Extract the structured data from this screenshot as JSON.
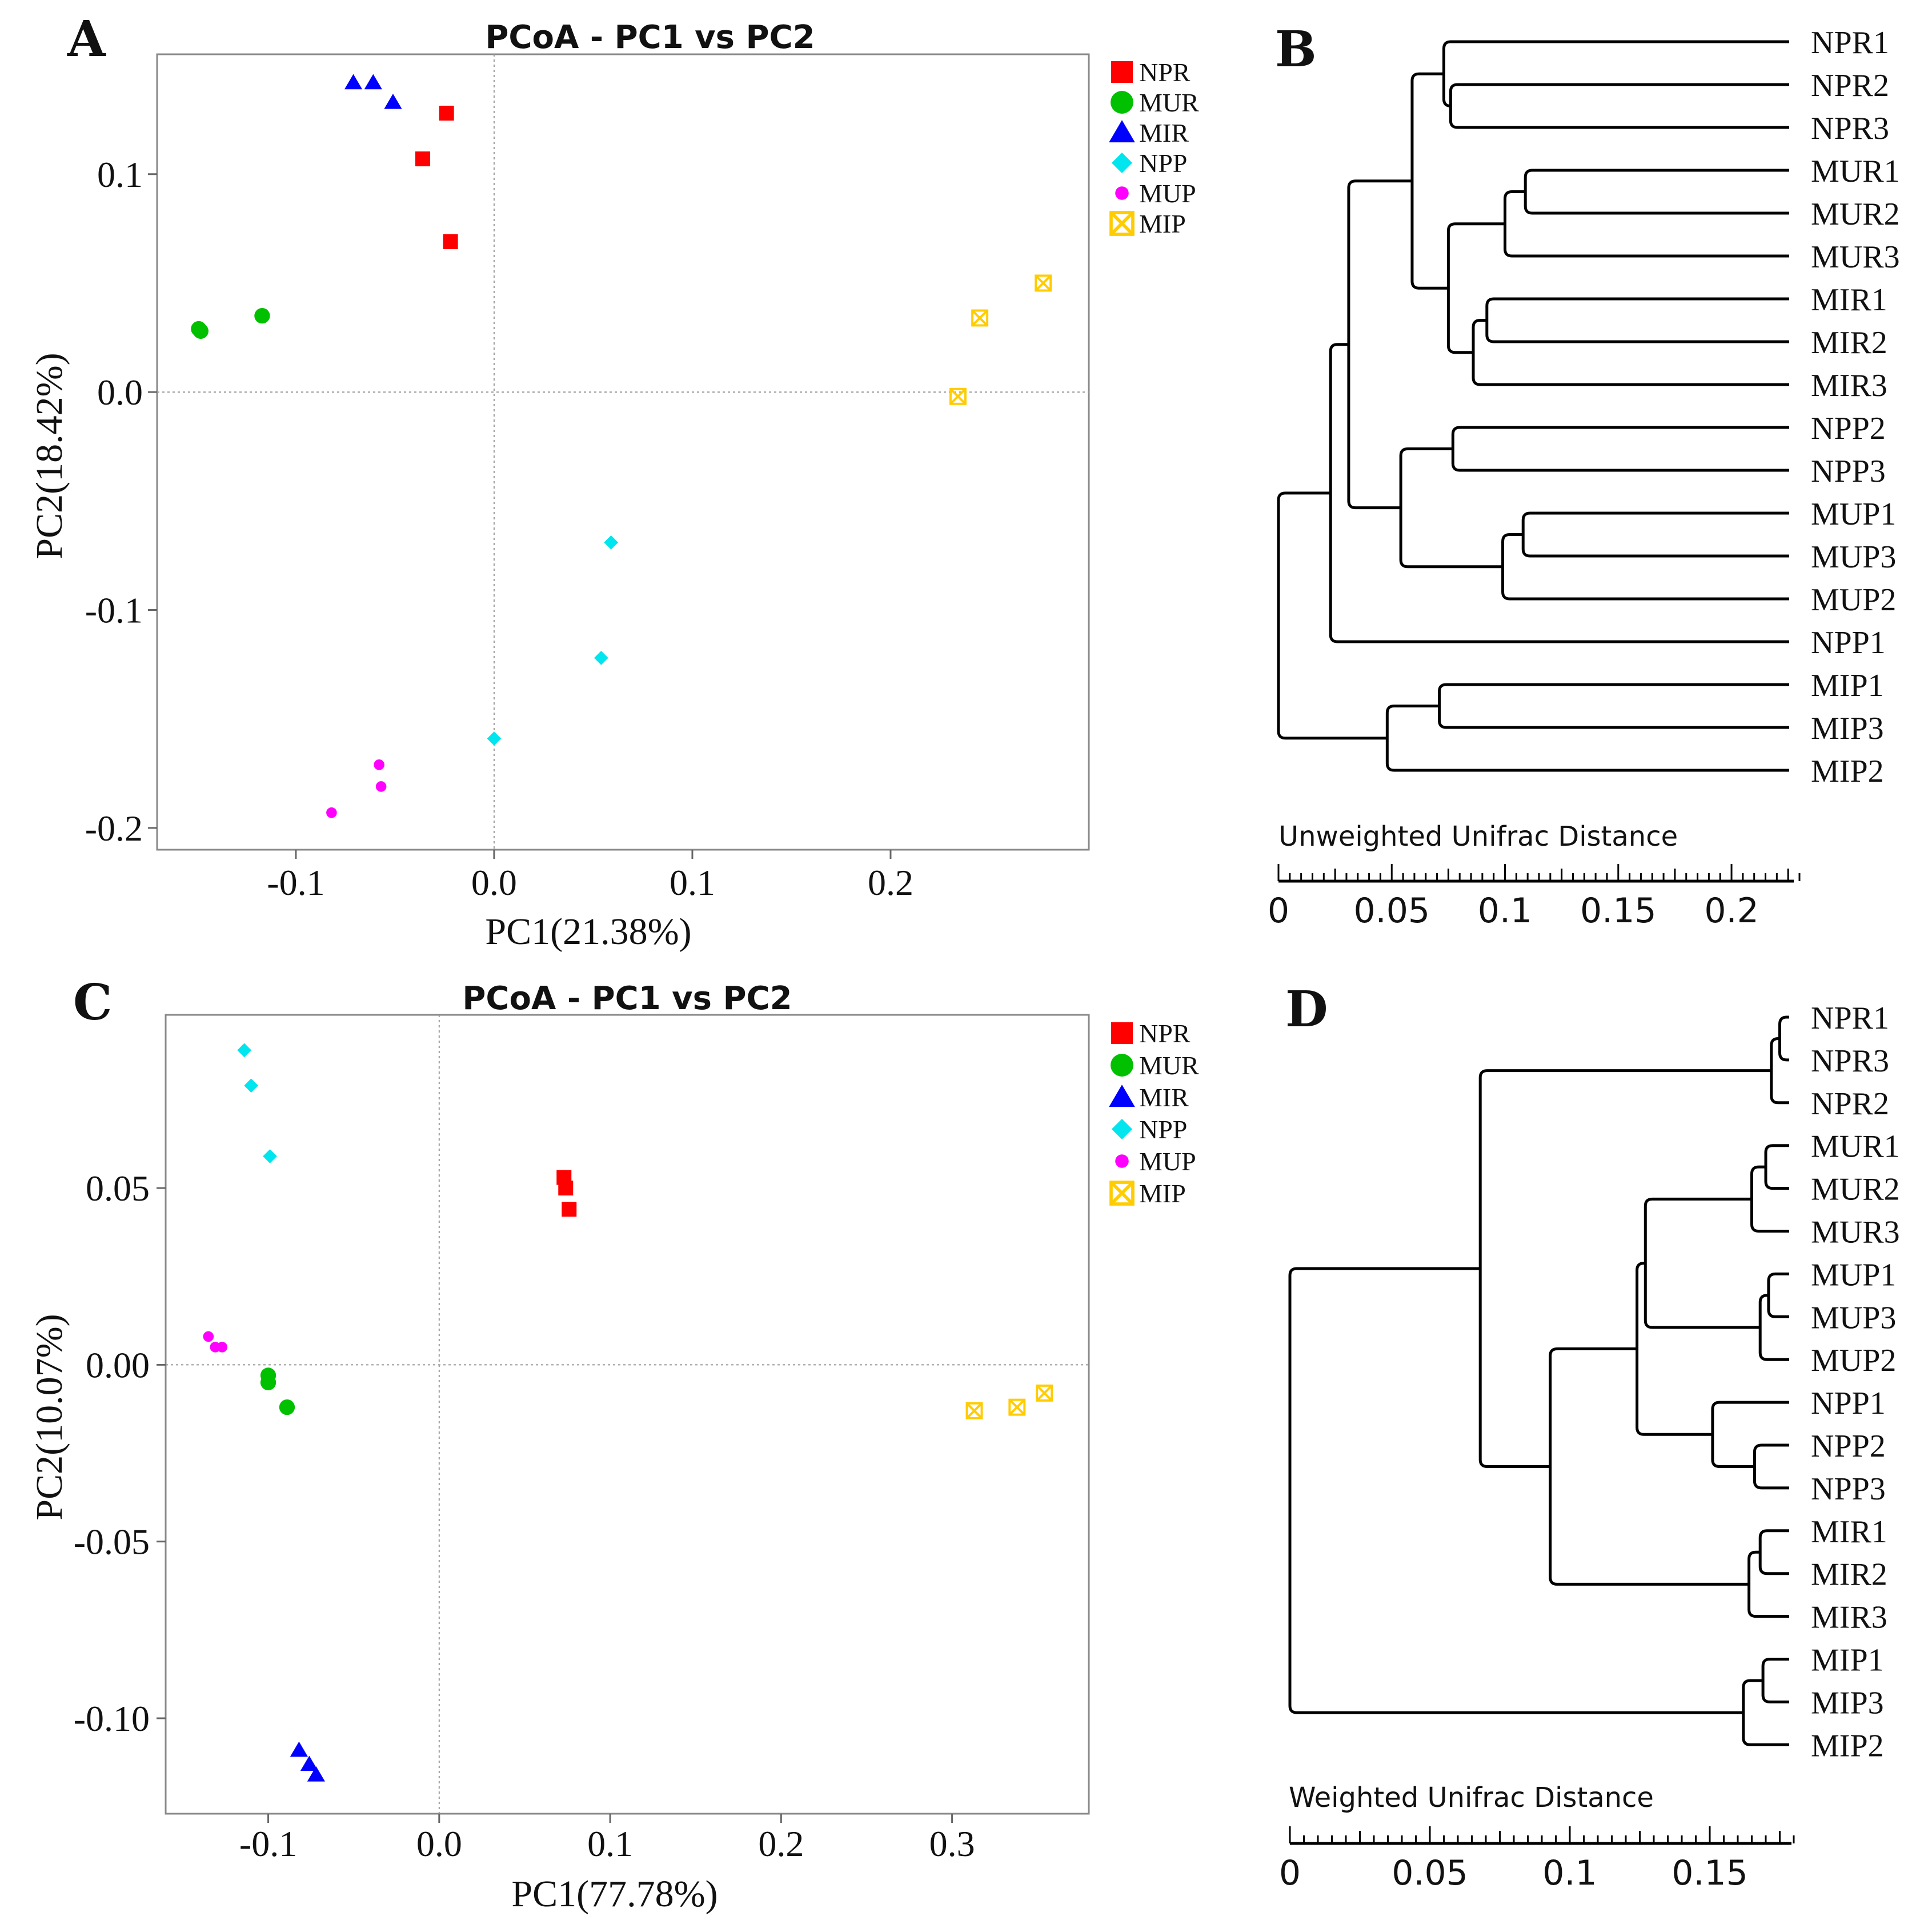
{
  "panels": {
    "A": {
      "letter": "A"
    },
    "B": {
      "letter": "B"
    },
    "C": {
      "letter": "C"
    },
    "D": {
      "letter": "D"
    }
  },
  "colors": {
    "NPR": "#ff0000",
    "MUR": "#00c000",
    "MIR": "#0000ff",
    "NPP": "#00e5ee",
    "MUP": "#ff00ff",
    "MIP": "#ffcc00"
  },
  "legend": [
    {
      "group": "NPR",
      "label": "NPR",
      "marker": "square"
    },
    {
      "group": "MUR",
      "label": "MUR",
      "marker": "circle"
    },
    {
      "group": "MIR",
      "label": "MIR",
      "marker": "triangle"
    },
    {
      "group": "NPP",
      "label": "NPP",
      "marker": "diamond"
    },
    {
      "group": "MUP",
      "label": "MUP",
      "marker": "smallcircle"
    },
    {
      "group": "MIP",
      "label": "MIP",
      "marker": "boxx"
    }
  ],
  "chart_data": [
    {
      "id": "A",
      "type": "scatter",
      "title": "PCoA - PC1 vs PC2",
      "xlabel": "PC1(21.38%)",
      "ylabel": "PC2(18.42%)",
      "xlim": [
        -0.17,
        0.3
      ],
      "ylim": [
        -0.21,
        0.155
      ],
      "xticks": [
        -0.1,
        0.0,
        0.1,
        0.2
      ],
      "xtick_labels": [
        "-0.1",
        "0.0",
        "0.1",
        "0.2"
      ],
      "yticks": [
        0.1,
        0.0,
        -0.1,
        -0.2
      ],
      "ytick_labels": [
        "0.1",
        "0.0",
        "-0.1",
        "-0.2"
      ],
      "series": [
        {
          "name": "NPR",
          "points": [
            [
              -0.024,
              0.128
            ],
            [
              -0.036,
              0.107
            ],
            [
              -0.022,
              0.069
            ]
          ]
        },
        {
          "name": "MUR",
          "points": [
            [
              -0.149,
              0.029
            ],
            [
              -0.148,
              0.028
            ],
            [
              -0.117,
              0.035
            ]
          ]
        },
        {
          "name": "MIR",
          "points": [
            [
              -0.071,
              0.142
            ],
            [
              -0.061,
              0.142
            ],
            [
              -0.051,
              0.133
            ]
          ]
        },
        {
          "name": "NPP",
          "points": [
            [
              0.059,
              -0.069
            ],
            [
              0.054,
              -0.122
            ],
            [
              0.0,
              -0.159
            ]
          ]
        },
        {
          "name": "MUP",
          "points": [
            [
              -0.058,
              -0.171
            ],
            [
              -0.057,
              -0.181
            ],
            [
              -0.082,
              -0.193
            ]
          ]
        },
        {
          "name": "MIP",
          "points": [
            [
              0.277,
              0.05
            ],
            [
              0.245,
              0.034
            ],
            [
              0.234,
              -0.002
            ]
          ]
        }
      ]
    },
    {
      "id": "C",
      "type": "scatter",
      "title": "PCoA - PC1 vs PC2",
      "xlabel": "PC1(77.78%)",
      "ylabel": "PC2(10.07%)",
      "xlim": [
        -0.16,
        0.38
      ],
      "ylim": [
        -0.127,
        0.099
      ],
      "xticks": [
        -0.1,
        0.0,
        0.1,
        0.2,
        0.3
      ],
      "xtick_labels": [
        "-0.1",
        "0.0",
        "0.1",
        "0.2",
        "0.3"
      ],
      "yticks": [
        0.05,
        0.0,
        -0.05,
        -0.1
      ],
      "ytick_labels": [
        "0.05",
        "0.00",
        "-0.05",
        "-0.10"
      ],
      "series": [
        {
          "name": "NPR",
          "points": [
            [
              0.073,
              0.053
            ],
            [
              0.074,
              0.05
            ],
            [
              0.076,
              0.044
            ]
          ]
        },
        {
          "name": "MUR",
          "points": [
            [
              -0.1,
              -0.003
            ],
            [
              -0.1,
              -0.005
            ],
            [
              -0.089,
              -0.012
            ]
          ]
        },
        {
          "name": "MIR",
          "points": [
            [
              -0.082,
              -0.109
            ],
            [
              -0.076,
              -0.113
            ],
            [
              -0.072,
              -0.116
            ]
          ]
        },
        {
          "name": "NPP",
          "points": [
            [
              -0.114,
              0.089
            ],
            [
              -0.11,
              0.079
            ],
            [
              -0.099,
              0.059
            ]
          ]
        },
        {
          "name": "MUP",
          "points": [
            [
              -0.135,
              0.008
            ],
            [
              -0.131,
              0.005
            ],
            [
              -0.127,
              0.005
            ]
          ]
        },
        {
          "name": "MIP",
          "points": [
            [
              0.313,
              -0.013
            ],
            [
              0.338,
              -0.012
            ],
            [
              0.354,
              -0.008
            ]
          ]
        }
      ]
    },
    {
      "id": "B",
      "type": "dendrogram",
      "xlabel": "Unweighted Unifrac Distance",
      "xlim": [
        0,
        0.23
      ],
      "xticks": [
        0,
        0.05,
        0.1,
        0.15,
        0.2
      ],
      "xtick_labels": [
        "0",
        "0.05",
        "0.1",
        "0.15",
        "0.2"
      ],
      "leaves": [
        "NPR1",
        "NPR2",
        "NPR3",
        "MUR1",
        "MUR2",
        "MUR3",
        "MIR1",
        "MIR2",
        "MIR3",
        "NPP2",
        "NPP3",
        "MUP1",
        "MUP3",
        "MUP2",
        "NPP1",
        "MIP1",
        "MIP3",
        "MIP2"
      ],
      "tree": {
        "h": 0.0,
        "c": [
          {
            "h": 0.023,
            "c": [
              {
                "h": 0.031,
                "c": [
                  {
                    "h": 0.059,
                    "c": [
                      {
                        "h": 0.073,
                        "c": [
                          {
                            "l": 0
                          },
                          {
                            "h": 0.076,
                            "c": [
                              {
                                "l": 1
                              },
                              {
                                "l": 2
                              }
                            ]
                          }
                        ]
                      },
                      {
                        "h": 0.075,
                        "c": [
                          {
                            "h": 0.1,
                            "c": [
                              {
                                "h": 0.109,
                                "c": [
                                  {
                                    "l": 3
                                  },
                                  {
                                    "l": 4
                                  }
                                ]
                              },
                              {
                                "l": 5
                              }
                            ]
                          },
                          {
                            "h": 0.086,
                            "c": [
                              {
                                "h": 0.092,
                                "c": [
                                  {
                                    "l": 6
                                  },
                                  {
                                    "l": 7
                                  }
                                ]
                              },
                              {
                                "l": 8
                              }
                            ]
                          }
                        ]
                      }
                    ]
                  },
                  {
                    "h": 0.054,
                    "c": [
                      {
                        "h": 0.077,
                        "c": [
                          {
                            "l": 9
                          },
                          {
                            "l": 10
                          }
                        ]
                      },
                      {
                        "h": 0.099,
                        "c": [
                          {
                            "h": 0.108,
                            "c": [
                              {
                                "l": 11
                              },
                              {
                                "l": 12
                              }
                            ]
                          },
                          {
                            "l": 13
                          }
                        ]
                      }
                    ]
                  }
                ]
              },
              {
                "l": 14
              }
            ]
          },
          {
            "h": 0.048,
            "c": [
              {
                "h": 0.071,
                "c": [
                  {
                    "l": 15
                  },
                  {
                    "l": 16
                  }
                ]
              },
              {
                "l": 17
              }
            ]
          }
        ]
      }
    },
    {
      "id": "D",
      "type": "dendrogram",
      "xlabel": "Weighted Unifrac Distance",
      "xlim": [
        0,
        0.18
      ],
      "xticks": [
        0,
        0.05,
        0.1,
        0.15
      ],
      "xtick_labels": [
        "0",
        "0.05",
        "0.1",
        "0.15"
      ],
      "leaves": [
        "NPR1",
        "NPR3",
        "NPR2",
        "MUR1",
        "MUR2",
        "MUR3",
        "MUP1",
        "MUP3",
        "MUP2",
        "NPP1",
        "NPP2",
        "NPP3",
        "MIR1",
        "MIR2",
        "MIR3",
        "MIP1",
        "MIP3",
        "MIP2"
      ],
      "tree": {
        "h": 0.0,
        "c": [
          {
            "h": 0.068,
            "c": [
              {
                "h": 0.172,
                "c": [
                  {
                    "h": 0.175,
                    "c": [
                      {
                        "l": 0
                      },
                      {
                        "l": 1
                      }
                    ]
                  },
                  {
                    "l": 2
                  }
                ]
              },
              {
                "h": 0.093,
                "c": [
                  {
                    "h": 0.124,
                    "c": [
                      {
                        "h": 0.127,
                        "c": [
                          {
                            "h": 0.165,
                            "c": [
                              {
                                "h": 0.17,
                                "c": [
                                  {
                                    "l": 3
                                  },
                                  {
                                    "l": 4
                                  }
                                ]
                              },
                              {
                                "l": 5
                              }
                            ]
                          },
                          {
                            "h": 0.168,
                            "c": [
                              {
                                "h": 0.171,
                                "c": [
                                  {
                                    "l": 6
                                  },
                                  {
                                    "l": 7
                                  }
                                ]
                              },
                              {
                                "l": 8
                              }
                            ]
                          }
                        ]
                      },
                      {
                        "h": 0.151,
                        "c": [
                          {
                            "l": 9
                          },
                          {
                            "h": 0.166,
                            "c": [
                              {
                                "l": 10
                              },
                              {
                                "l": 11
                              }
                            ]
                          }
                        ]
                      }
                    ]
                  },
                  {
                    "h": 0.164,
                    "c": [
                      {
                        "h": 0.168,
                        "c": [
                          {
                            "l": 12
                          },
                          {
                            "l": 13
                          }
                        ]
                      },
                      {
                        "l": 14
                      }
                    ]
                  }
                ]
              }
            ]
          },
          {
            "h": 0.162,
            "c": [
              {
                "h": 0.169,
                "c": [
                  {
                    "l": 15
                  },
                  {
                    "l": 16
                  }
                ]
              },
              {
                "l": 17
              }
            ]
          }
        ]
      }
    }
  ]
}
